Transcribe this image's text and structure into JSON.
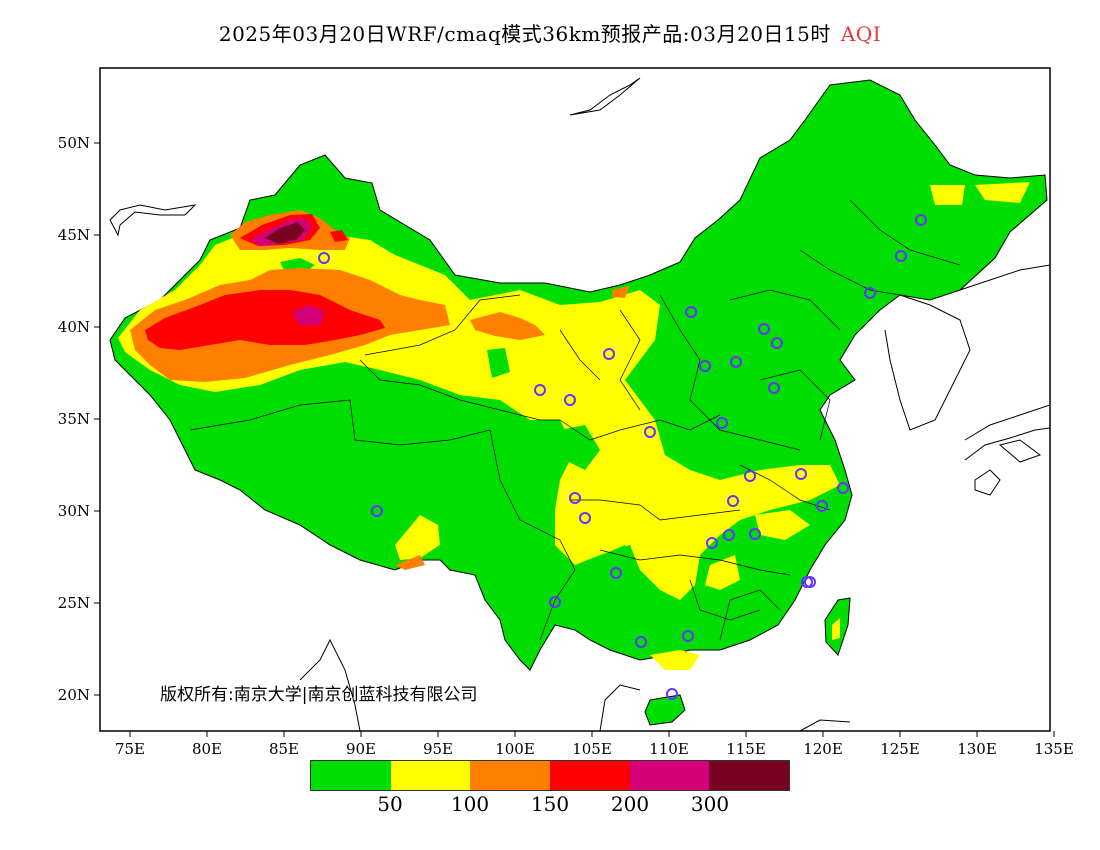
{
  "title": {
    "main": "2025年03月20日WRF/cmaq模式36km预报产品:03月20日15时",
    "tag": "AQI",
    "tag_color": "#e03a3a"
  },
  "axes": {
    "x_ticks": [
      "75E",
      "80E",
      "85E",
      "90E",
      "95E",
      "100E",
      "105E",
      "110E",
      "115E",
      "120E",
      "125E",
      "130E",
      "135E"
    ],
    "y_ticks": [
      "50N",
      "45N",
      "40N",
      "35N",
      "30N",
      "25N",
      "20N"
    ],
    "lon_range": [
      73,
      135
    ],
    "lat_range": [
      18,
      54
    ]
  },
  "copyright": "版权所有:南京大学|南京创蓝科技有限公司",
  "legend": {
    "colors": [
      "#00dd00",
      "#ffff00",
      "#ff8000",
      "#ff0000",
      "#d4007a",
      "#7a0022"
    ],
    "labels": [
      "50",
      "100",
      "150",
      "200",
      "300"
    ]
  },
  "cities_count": 33
}
